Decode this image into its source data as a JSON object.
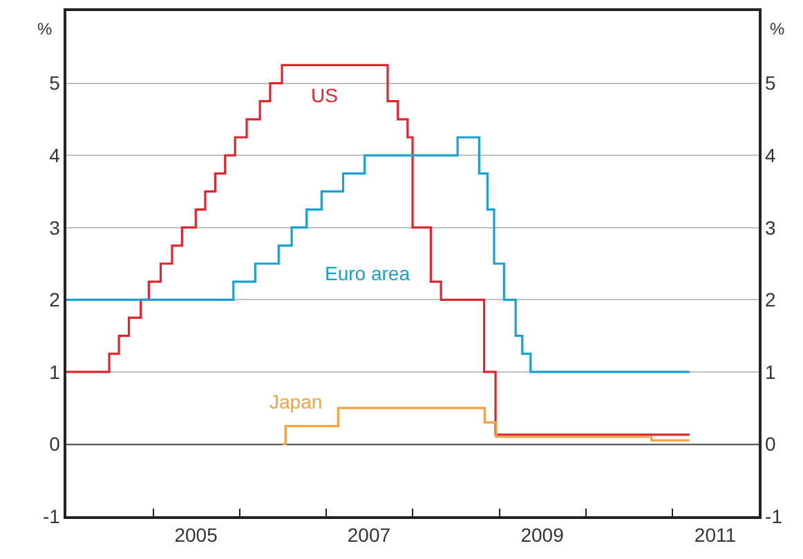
{
  "chart_data": {
    "type": "step",
    "ylabel": "%",
    "y2label": "%",
    "xlim": [
      "2004-01-01",
      "2012-01-01"
    ],
    "xticks": [
      {
        "value": "2005-01-01",
        "label": null
      },
      {
        "value": "2006-01-01",
        "label": null
      },
      {
        "value": "2007-01-01",
        "label": null
      },
      {
        "value": "2008-01-01",
        "label": null
      },
      {
        "value": "2009-01-01",
        "label": null
      },
      {
        "value": "2010-01-01",
        "label": null
      },
      {
        "value": "2011-01-01",
        "label": null
      },
      {
        "value": "2005-07-01",
        "label": "2005"
      },
      {
        "value": "2007-07-01",
        "label": "2007"
      },
      {
        "value": "2009-07-01",
        "label": "2009"
      },
      {
        "value": "2011-07-01",
        "label": "2011"
      }
    ],
    "ylim": [
      -1,
      6
    ],
    "yticks": [
      -1,
      0,
      1,
      2,
      3,
      4,
      5
    ],
    "y2lim": [
      -1,
      6
    ],
    "y2ticks": [
      -1,
      0,
      1,
      2,
      3,
      4,
      5
    ],
    "grid": "y",
    "legend": false,
    "ref_lines": [
      {
        "axis": "y",
        "value": 0,
        "color": "#000000"
      }
    ],
    "series": [
      {
        "name": "US",
        "color": "#e0252f",
        "x": [
          "2004-01-01",
          "2004-06-30",
          "2004-08-10",
          "2004-09-21",
          "2004-11-10",
          "2004-12-14",
          "2005-02-02",
          "2005-03-22",
          "2005-05-03",
          "2005-06-30",
          "2005-08-09",
          "2005-09-20",
          "2005-11-01",
          "2005-12-13",
          "2006-01-31",
          "2006-03-28",
          "2006-05-10",
          "2006-06-29",
          "2007-09-18",
          "2007-10-31",
          "2007-12-11",
          "2008-01-01",
          "2008-03-18",
          "2008-04-30",
          "2008-10-29",
          "2008-12-16",
          "2011-03-15"
        ],
        "values": [
          1.0,
          1.25,
          1.5,
          1.75,
          2.0,
          2.25,
          2.5,
          2.75,
          3.0,
          3.25,
          3.5,
          3.75,
          4.0,
          4.25,
          4.5,
          4.75,
          5.0,
          5.25,
          4.75,
          4.5,
          4.25,
          3.0,
          2.25,
          2.0,
          1.0,
          0.13,
          0.13
        ]
      },
      {
        "name": "Euro area",
        "color": "#1ba1cf",
        "x": [
          "2004-01-01",
          "2005-12-06",
          "2006-03-08",
          "2006-06-15",
          "2006-08-09",
          "2006-10-11",
          "2006-12-13",
          "2007-03-14",
          "2007-06-13",
          "2008-07-09",
          "2008-10-08",
          "2008-11-12",
          "2008-12-10",
          "2009-01-21",
          "2009-03-11",
          "2009-04-08",
          "2009-05-13",
          "2011-03-15"
        ],
        "values": [
          2.0,
          2.25,
          2.5,
          2.75,
          3.0,
          3.25,
          3.5,
          3.75,
          4.0,
          4.25,
          3.75,
          3.25,
          2.5,
          2.0,
          1.5,
          1.25,
          1.0,
          1.0
        ]
      },
      {
        "name": "Japan",
        "color": "#f5a340",
        "x": [
          "2006-07-01",
          "2006-07-14",
          "2007-02-21",
          "2008-10-31",
          "2008-12-19",
          "2010-10-05",
          "2011-03-15"
        ],
        "values": [
          0,
          0.25,
          0.5,
          0.3,
          0.1,
          0.05,
          0.05
        ]
      }
    ]
  }
}
